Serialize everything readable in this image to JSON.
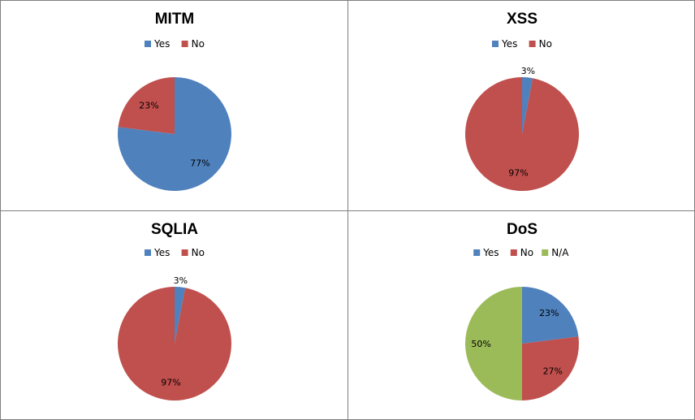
{
  "chart_data": [
    {
      "type": "pie",
      "title": "MITM",
      "categories": [
        "Yes",
        "No"
      ],
      "values": [
        77,
        23
      ],
      "labels": [
        "77%",
        "23%"
      ],
      "colors": [
        "#4f81bd",
        "#c0504d"
      ],
      "legend": "top"
    },
    {
      "type": "pie",
      "title": "XSS",
      "categories": [
        "Yes",
        "No"
      ],
      "values": [
        3,
        97
      ],
      "labels": [
        "3%",
        "97%"
      ],
      "colors": [
        "#4f81bd",
        "#c0504d"
      ],
      "legend": "top"
    },
    {
      "type": "pie",
      "title": "SQLIA",
      "categories": [
        "Yes",
        "No"
      ],
      "values": [
        3,
        97
      ],
      "labels": [
        "3%",
        "97%"
      ],
      "colors": [
        "#4f81bd",
        "#c0504d"
      ],
      "legend": "top"
    },
    {
      "type": "pie",
      "title": "DoS",
      "categories": [
        "Yes",
        "No",
        "N/A"
      ],
      "values": [
        23,
        27,
        50
      ],
      "labels": [
        "23%",
        "27%",
        "50%"
      ],
      "colors": [
        "#4f81bd",
        "#c0504d",
        "#9bbb59"
      ],
      "legend": "top"
    }
  ]
}
